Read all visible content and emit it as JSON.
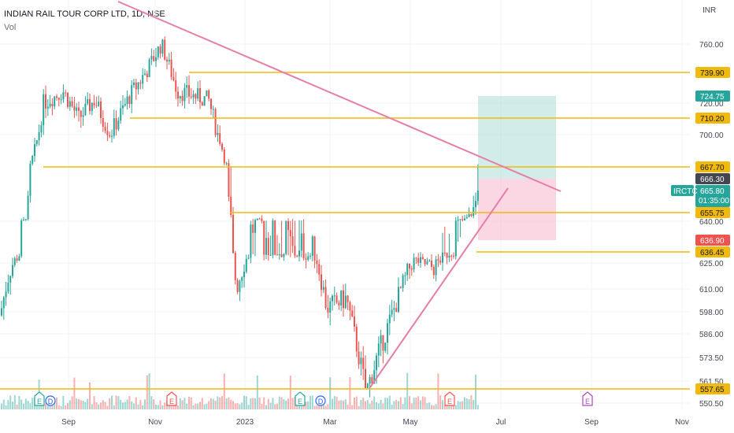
{
  "header": {
    "title": "INDIAN RAIL TOUR CORP LTD, 1D, NSE",
    "volume_label": "Vol"
  },
  "axis": {
    "currency": "INR"
  },
  "colors": {
    "up": "#26a69a",
    "down": "#ef5350",
    "level_line": "#f0b90b",
    "trend_line": "#e57ea8",
    "target_zone": "#b2dfdb",
    "stop_zone": "#f8bbd0",
    "grid": "#f0f3fa"
  },
  "chart_data": {
    "type": "candlestick",
    "title": "INDIAN RAIL TOUR CORP LTD, 1D, NSE",
    "y_axis": {
      "ticks": [
        760.0,
        720.0,
        700.0,
        640.0,
        625.0,
        610.0,
        598.0,
        586.0,
        573.5,
        561.5,
        550.5
      ],
      "position": "right",
      "label": "INR"
    },
    "x_axis": {
      "ticks": [
        "Sep",
        "Nov",
        "2023",
        "Mar",
        "May",
        "Jul",
        "Sep",
        "Nov"
      ]
    },
    "price_tags": [
      {
        "value": "739.90",
        "style": "level"
      },
      {
        "value": "724.75",
        "style": "target"
      },
      {
        "value": "710.20",
        "style": "level"
      },
      {
        "value": "667.70",
        "style": "level"
      },
      {
        "value": "666.30",
        "style": "dark"
      },
      {
        "value": "665.80",
        "style": "last",
        "symbol": "IRCTC",
        "countdown": "01:35:00"
      },
      {
        "value": "655.75",
        "style": "level"
      },
      {
        "value": "636.90",
        "style": "stop"
      },
      {
        "value": "636.45",
        "style": "level"
      },
      {
        "value": "557.65",
        "style": "level"
      }
    ],
    "horizontal_levels": [
      739.9,
      710.2,
      667.7,
      655.75,
      636.45,
      557.65
    ],
    "trend_lines": [
      {
        "label": "resistance",
        "points": [
          [
            "2022-08-01",
            790
          ],
          [
            "2023-08-10",
            666.3
          ]
        ]
      },
      {
        "label": "support",
        "points": [
          [
            "2023-03-01",
            557.65
          ],
          [
            "2023-06-25",
            666.3
          ]
        ]
      }
    ],
    "position": {
      "type": "long",
      "entry": 666.3,
      "target": 724.75,
      "stop": 636.9
    },
    "events": [
      {
        "type": "E",
        "color": "teal"
      },
      {
        "type": "D",
        "color": "blue"
      },
      {
        "type": "E",
        "color": "red"
      },
      {
        "type": "E",
        "color": "teal"
      },
      {
        "type": "D",
        "color": "blue"
      },
      {
        "type": "E",
        "color": "red"
      },
      {
        "type": "E",
        "color": "purple"
      }
    ],
    "approx_closing_path": [
      [
        0,
        596
      ],
      [
        12,
        620
      ],
      [
        30,
        640
      ],
      [
        55,
        720
      ],
      [
        80,
        728
      ],
      [
        100,
        710
      ],
      [
        120,
        722
      ],
      [
        140,
        700
      ],
      [
        165,
        725
      ],
      [
        185,
        740
      ],
      [
        205,
        760
      ],
      [
        225,
        728
      ],
      [
        245,
        725
      ],
      [
        265,
        722
      ],
      [
        280,
        693
      ],
      [
        292,
        654
      ],
      [
        300,
        610
      ],
      [
        320,
        640
      ],
      [
        350,
        636
      ],
      [
        380,
        634
      ],
      [
        400,
        632
      ],
      [
        415,
        600
      ],
      [
        440,
        605
      ],
      [
        465,
        556
      ],
      [
        480,
        575
      ],
      [
        505,
        605
      ],
      [
        525,
        628
      ],
      [
        550,
        622
      ],
      [
        570,
        636
      ],
      [
        590,
        642
      ],
      [
        608,
        665.8
      ]
    ]
  }
}
